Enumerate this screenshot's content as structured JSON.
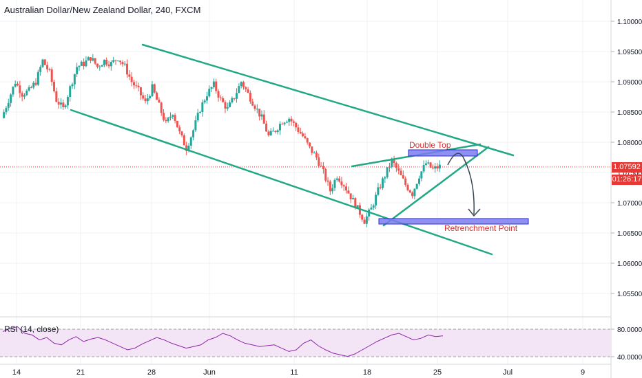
{
  "header": {
    "title": "Australian Dollar/New Zealand Dollar, 240, FXCM"
  },
  "rsi": {
    "label": "RSI (14, close)",
    "levels": [
      "80.0000",
      "40.0000"
    ]
  },
  "price_axis": {
    "ticks": [
      "1.10000",
      "1.09500",
      "1.09000",
      "1.08500",
      "1.08000",
      "1.07500",
      "1.07000",
      "1.06500",
      "1.06000",
      "1.05500"
    ],
    "last_price": "1.07592",
    "countdown": "01:26:17"
  },
  "time_axis": {
    "ticks": [
      "14",
      "21",
      "28",
      "Jun",
      "11",
      "18",
      "25",
      "Jul",
      "9"
    ]
  },
  "annotations": {
    "double_top": "Double Top",
    "retrenchment": "Retrenchment Point"
  },
  "colors": {
    "up": "#26a69a",
    "down": "#ef5350",
    "trendline": "#22a884",
    "box_fill": "#7b7cf0",
    "box_stroke": "#2a2bd1",
    "rsi_line": "#8e24aa",
    "rsi_band": "#f3e5f5",
    "last_price": "#e53935"
  },
  "chart_data": {
    "type": "candlestick",
    "title": "Australian Dollar/New Zealand Dollar, 240, FXCM",
    "y_axis": {
      "ticks": [
        1.1,
        1.095,
        1.09,
        1.085,
        1.08,
        1.075,
        1.07,
        1.065,
        1.06,
        1.055
      ]
    },
    "x_axis": {
      "ticks": [
        "14",
        "21",
        "28",
        "Jun",
        "11",
        "18",
        "25",
        "Jul",
        "9"
      ]
    },
    "last_price": 1.07592,
    "close_path": [
      {
        "t": 0,
        "v": 1.084
      },
      {
        "t": 1,
        "v": 1.087
      },
      {
        "t": 2,
        "v": 1.09
      },
      {
        "t": 3,
        "v": 1.088
      },
      {
        "t": 4,
        "v": 1.0885
      },
      {
        "t": 5,
        "v": 1.09
      },
      {
        "t": 6,
        "v": 1.0935
      },
      {
        "t": 7,
        "v": 1.0915
      },
      {
        "t": 8,
        "v": 1.087
      },
      {
        "t": 9,
        "v": 1.0855
      },
      {
        "t": 10,
        "v": 1.089
      },
      {
        "t": 11,
        "v": 1.0925
      },
      {
        "t": 12,
        "v": 1.093
      },
      {
        "t": 13,
        "v": 1.094
      },
      {
        "t": 14,
        "v": 1.0925
      },
      {
        "t": 15,
        "v": 1.0935
      },
      {
        "t": 16,
        "v": 1.093
      },
      {
        "t": 17,
        "v": 1.094
      },
      {
        "t": 18,
        "v": 1.0925
      },
      {
        "t": 19,
        "v": 1.09
      },
      {
        "t": 20,
        "v": 1.0885
      },
      {
        "t": 21,
        "v": 1.0865
      },
      {
        "t": 22,
        "v": 1.089
      },
      {
        "t": 23,
        "v": 1.086
      },
      {
        "t": 24,
        "v": 1.083
      },
      {
        "t": 25,
        "v": 1.085
      },
      {
        "t": 26,
        "v": 1.0815
      },
      {
        "t": 27,
        "v": 1.079
      },
      {
        "t": 28,
        "v": 1.082
      },
      {
        "t": 29,
        "v": 1.0855
      },
      {
        "t": 30,
        "v": 1.088
      },
      {
        "t": 31,
        "v": 1.0895
      },
      {
        "t": 32,
        "v": 1.087
      },
      {
        "t": 33,
        "v": 1.0855
      },
      {
        "t": 34,
        "v": 1.0875
      },
      {
        "t": 35,
        "v": 1.09
      },
      {
        "t": 36,
        "v": 1.088
      },
      {
        "t": 37,
        "v": 1.086
      },
      {
        "t": 38,
        "v": 1.084
      },
      {
        "t": 39,
        "v": 1.081
      },
      {
        "t": 40,
        "v": 1.082
      },
      {
        "t": 41,
        "v": 1.0835
      },
      {
        "t": 42,
        "v": 1.084
      },
      {
        "t": 43,
        "v": 1.0825
      },
      {
        "t": 44,
        "v": 1.081
      },
      {
        "t": 45,
        "v": 1.079
      },
      {
        "t": 46,
        "v": 1.0775
      },
      {
        "t": 47,
        "v": 1.075
      },
      {
        "t": 48,
        "v": 1.072
      },
      {
        "t": 49,
        "v": 1.0745
      },
      {
        "t": 50,
        "v": 1.073
      },
      {
        "t": 51,
        "v": 1.071
      },
      {
        "t": 52,
        "v": 1.069
      },
      {
        "t": 53,
        "v": 1.067
      },
      {
        "t": 54,
        "v": 1.069
      },
      {
        "t": 55,
        "v": 1.072
      },
      {
        "t": 56,
        "v": 1.0745
      },
      {
        "t": 57,
        "v": 1.077
      },
      {
        "t": 58,
        "v": 1.075
      },
      {
        "t": 59,
        "v": 1.073
      },
      {
        "t": 60,
        "v": 1.0715
      },
      {
        "t": 61,
        "v": 1.0745
      },
      {
        "t": 62,
        "v": 1.0765
      },
      {
        "t": 63,
        "v": 1.0755
      },
      {
        "t": 64,
        "v": 1.076
      }
    ],
    "rsi_series": [
      62,
      66,
      68,
      60,
      58,
      52,
      55,
      48,
      46,
      52,
      56,
      50,
      53,
      55,
      52,
      48,
      44,
      40,
      42,
      47,
      51,
      55,
      52,
      48,
      45,
      42,
      44,
      46,
      52,
      55,
      60,
      57,
      52,
      48,
      46,
      44,
      45,
      46,
      42,
      38,
      40,
      48,
      52,
      45,
      40,
      36,
      34,
      32,
      35,
      40,
      45,
      50,
      54,
      58,
      60,
      56,
      52,
      54,
      58,
      56,
      57
    ]
  }
}
